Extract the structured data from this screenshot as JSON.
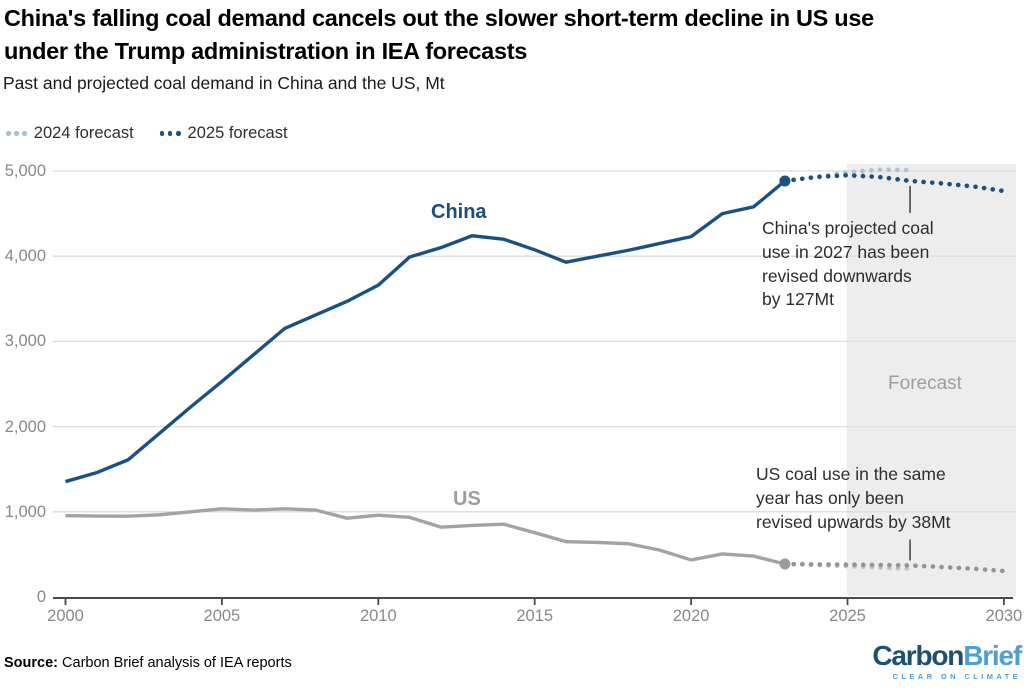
{
  "header": {
    "title_line1": "China's falling coal demand cancels out the slower short-term decline in US use",
    "title_line2": "under the Trump administration in IEA forecasts",
    "subtitle": "Past and projected coal demand in China and the US, Mt"
  },
  "legend": {
    "items": [
      {
        "label": "2024 forecast",
        "dot_color": "#a9bfd4"
      },
      {
        "label": "2025 forecast",
        "dot_color": "#1b5181"
      }
    ]
  },
  "chart_data": {
    "type": "line",
    "unit": "Mt",
    "x_range": [
      2000,
      2030
    ],
    "y_range": [
      0,
      5000
    ],
    "grid": true,
    "x_ticks": [
      2000,
      2005,
      2010,
      2015,
      2020,
      2025,
      2030
    ],
    "y_ticks": [
      {
        "value": 0,
        "label": "0"
      },
      {
        "value": 1000,
        "label": "1,000"
      },
      {
        "value": 2000,
        "label": "2,000"
      },
      {
        "value": 3000,
        "label": "3,000"
      },
      {
        "value": 4000,
        "label": "4,000"
      },
      {
        "value": 5000,
        "label": "5,000"
      }
    ],
    "forecast_band": {
      "start_year": 2025,
      "label": "Forecast",
      "color": "#ededed"
    },
    "series": [
      {
        "name": "US 2024 forecast",
        "style": "dotted",
        "start_year": 2023,
        "color": "#c4c4c4",
        "values": [
          387,
          378,
          362,
          346,
          332
        ]
      },
      {
        "name": "US 2025 forecast",
        "style": "dotted",
        "start_year": 2023,
        "color": "#949494",
        "values": [
          387,
          383,
          380,
          376,
          370,
          352,
          333,
          305
        ]
      },
      {
        "name": "China 2024 forecast",
        "style": "dotted",
        "start_year": 2023,
        "color": "#aec2d7",
        "values": [
          4883,
          4930,
          4985,
          5015,
          5011
        ]
      },
      {
        "name": "China 2025 forecast",
        "style": "dotted",
        "start_year": 2023,
        "color": "#1b5181",
        "values": [
          4883,
          4930,
          4950,
          4930,
          4884,
          4855,
          4820,
          4765
        ]
      },
      {
        "name": "US",
        "style": "solid",
        "start_year": 2000,
        "color": "#a3a3a3",
        "values": [
          955,
          950,
          948,
          965,
          1000,
          1035,
          1020,
          1035,
          1020,
          925,
          960,
          935,
          820,
          840,
          855,
          755,
          650,
          640,
          625,
          550,
          435,
          505,
          480,
          387
        ]
      },
      {
        "name": "China",
        "style": "solid",
        "start_year": 2000,
        "color": "#1b5181",
        "values": [
          1355,
          1460,
          1610,
          1920,
          2230,
          2530,
          2840,
          3150,
          3310,
          3470,
          3660,
          3990,
          4100,
          4240,
          4200,
          4075,
          3930,
          4000,
          4070,
          4150,
          4230,
          4500,
          4580,
          4883
        ]
      }
    ],
    "end_markers": [
      {
        "series": "China",
        "year": 2023,
        "value": 4883,
        "color": "#1b5181"
      },
      {
        "series": "US",
        "year": 2023,
        "value": 387,
        "color": "#9b9b9b"
      }
    ],
    "series_labels": [
      {
        "text": "China",
        "color": "#1a4f7e"
      },
      {
        "text": "US",
        "color": "#9e9e9e"
      }
    ],
    "annotations": [
      {
        "text": "China's projected coal\nuse in 2027 has been\nrevised downwards\nby 127Mt",
        "pointer_year": 2027,
        "pointer_value": 4884,
        "pointer_side": "below"
      },
      {
        "text": "US coal use in the same\nyear has only been\nrevised upwards by 38Mt",
        "pointer_year": 2027,
        "pointer_value": 370,
        "pointer_side": "above"
      }
    ]
  },
  "footer": {
    "source_label": "Source:",
    "source_text": " Carbon Brief analysis of IEA reports",
    "logo": {
      "part1": "Carbon",
      "part2": "Brief",
      "tagline": "CLEAR ON CLIMATE",
      "color1": "#1d4e74",
      "color2": "#4d9fd6"
    }
  }
}
